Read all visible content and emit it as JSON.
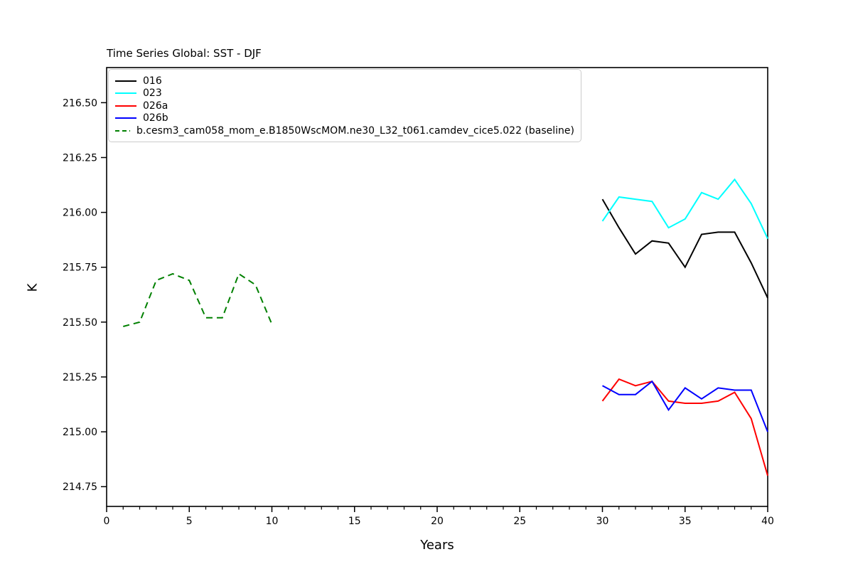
{
  "chart_data": {
    "type": "line",
    "title": "Time Series Global: SST - DJF",
    "xlabel": "Years",
    "ylabel": "K",
    "xlim": [
      0,
      40
    ],
    "ylim": [
      214.66,
      216.66
    ],
    "xticks_major": [
      0,
      5,
      10,
      15,
      20,
      25,
      30,
      35,
      40
    ],
    "xtick_minor_step": 1,
    "yticks_major": [
      214.75,
      215.0,
      215.25,
      215.5,
      215.75,
      216.0,
      216.25,
      216.5
    ],
    "ytick_labels": [
      "214.75",
      "215.00",
      "215.25",
      "215.50",
      "215.75",
      "216.00",
      "216.25",
      "216.50"
    ],
    "grid": false,
    "legend_position": "upper left",
    "background_color": "#ffffff",
    "spine_color": "#000000",
    "series": [
      {
        "name": "016",
        "color": "#000000",
        "style": "solid",
        "x": [
          30,
          31,
          32,
          33,
          34,
          35,
          36,
          37,
          38,
          39,
          40
        ],
        "values": [
          216.06,
          215.93,
          215.81,
          215.87,
          215.86,
          215.75,
          215.9,
          215.91,
          215.91,
          215.77,
          215.61
        ]
      },
      {
        "name": "023",
        "color": "#00ffff",
        "style": "solid",
        "x": [
          30,
          31,
          32,
          33,
          34,
          35,
          36,
          37,
          38,
          39,
          40
        ],
        "values": [
          215.96,
          216.07,
          216.06,
          216.05,
          215.93,
          215.97,
          216.09,
          216.06,
          216.15,
          216.04,
          215.88
        ]
      },
      {
        "name": "026a",
        "color": "#ff0000",
        "style": "solid",
        "x": [
          30,
          31,
          32,
          33,
          34,
          35,
          36,
          37,
          38,
          39,
          40
        ],
        "values": [
          215.14,
          215.24,
          215.21,
          215.23,
          215.14,
          215.13,
          215.13,
          215.14,
          215.18,
          215.06,
          214.8
        ]
      },
      {
        "name": "026b",
        "color": "#0000ff",
        "style": "solid",
        "x": [
          30,
          31,
          32,
          33,
          34,
          35,
          36,
          37,
          38,
          39,
          40
        ],
        "values": [
          215.21,
          215.17,
          215.17,
          215.23,
          215.1,
          215.2,
          215.15,
          215.2,
          215.19,
          215.19,
          215.0
        ]
      },
      {
        "name": "b.cesm3_cam058_mom_e.B1850WscMOM.ne30_L32_t061.camdev_cice5.022 (baseline)",
        "color": "#008000",
        "style": "dashed",
        "x": [
          1,
          2,
          3,
          4,
          5,
          6,
          7,
          8,
          9,
          10
        ],
        "values": [
          215.48,
          215.5,
          215.69,
          215.72,
          215.69,
          215.52,
          215.52,
          215.72,
          215.67,
          215.49
        ]
      }
    ]
  }
}
